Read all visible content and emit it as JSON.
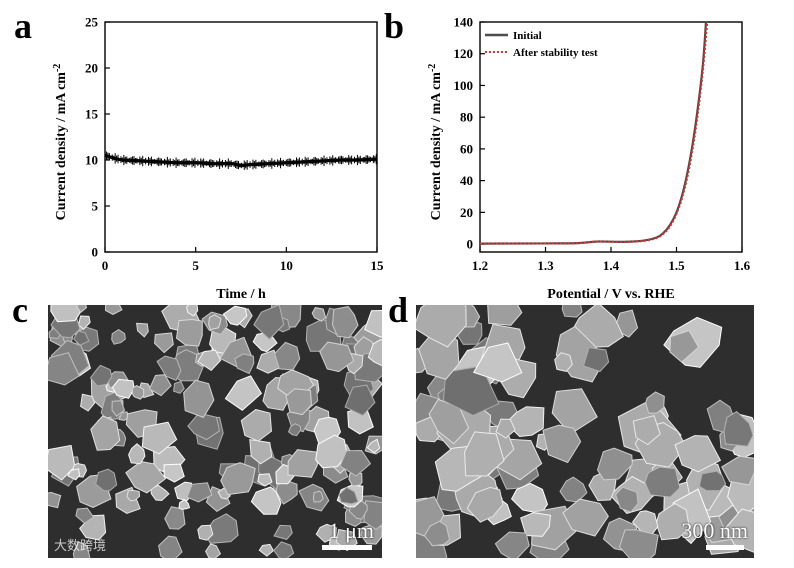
{
  "panels": {
    "a": "a",
    "b": "b",
    "c": "c",
    "d": "d"
  },
  "chart_data": [
    {
      "type": "line",
      "panel": "a",
      "title": "",
      "xlabel": "Time / h",
      "ylabel": "Current density / mA cm",
      "ylabel_sup": "-2",
      "xlim": [
        0,
        15
      ],
      "ylim": [
        0,
        25
      ],
      "xticks": [
        0,
        5,
        10,
        15
      ],
      "yticks": [
        0,
        5,
        10,
        15,
        20,
        25
      ],
      "series": [
        {
          "color": "#000000",
          "x": [
            0,
            0.5,
            1,
            2,
            3,
            4,
            5,
            6,
            7,
            7.5,
            8,
            9,
            10,
            11,
            12,
            13,
            14,
            15
          ],
          "y": [
            10.5,
            10.2,
            10.0,
            9.9,
            9.8,
            9.7,
            9.7,
            9.6,
            9.6,
            9.4,
            9.5,
            9.6,
            9.7,
            9.8,
            9.9,
            10.0,
            10.0,
            10.1
          ]
        }
      ]
    },
    {
      "type": "line",
      "panel": "b",
      "title": "",
      "xlabel": "Potential / V vs. RHE",
      "ylabel": "Current density / mA cm",
      "ylabel_sup": "-2",
      "xlim": [
        1.2,
        1.6
      ],
      "ylim": [
        -5,
        140
      ],
      "xticks": [
        1.2,
        1.3,
        1.4,
        1.5,
        1.6
      ],
      "yticks": [
        0,
        20,
        40,
        60,
        80,
        100,
        120,
        140
      ],
      "legend": "top-left",
      "series": [
        {
          "name": "Initial",
          "color": "#4d4d4d",
          "style": "solid",
          "x": [
            1.2,
            1.3,
            1.35,
            1.38,
            1.42,
            1.45,
            1.47,
            1.48,
            1.49,
            1.5,
            1.51,
            1.52,
            1.53,
            1.54,
            1.545
          ],
          "y": [
            0.3,
            0.4,
            0.6,
            1.6,
            1.4,
            2.2,
            4.2,
            7,
            12,
            20,
            33,
            52,
            78,
            112,
            140
          ]
        },
        {
          "name": "After stability test",
          "color": "#e03030",
          "style": "dotted",
          "x": [
            1.2,
            1.3,
            1.35,
            1.38,
            1.42,
            1.45,
            1.47,
            1.48,
            1.49,
            1.5,
            1.51,
            1.52,
            1.53,
            1.54,
            1.547
          ],
          "y": [
            0.3,
            0.4,
            0.6,
            1.6,
            1.4,
            2.0,
            3.9,
            6.5,
            11,
            19,
            31,
            49,
            74,
            108,
            140
          ]
        }
      ]
    }
  ],
  "sem": {
    "c_scale": "1 μm",
    "d_scale": "300 nm",
    "watermark": "大数跨境"
  }
}
